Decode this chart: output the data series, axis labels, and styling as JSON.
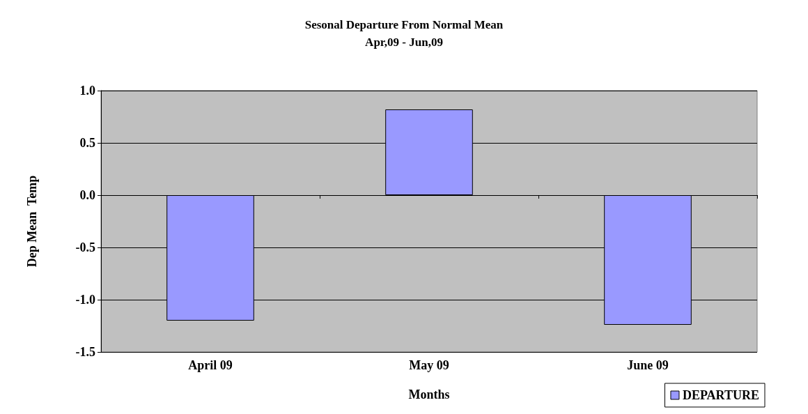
{
  "chart_data": {
    "type": "bar",
    "title": "Sesonal Departure From Normal Mean",
    "subtitle": "Apr,09 - Jun,09",
    "xlabel": "Months",
    "ylabel": "Dep Mean  Temp",
    "categories": [
      "April 09",
      "May 09",
      "June 09"
    ],
    "series": [
      {
        "name": "DEPARTURE",
        "color": "#9999ff",
        "values": [
          -1.2,
          0.82,
          -1.24
        ]
      }
    ],
    "ylim": [
      -1.5,
      1.0
    ],
    "yticks": [
      {
        "value": -1.5,
        "label": "-1.5"
      },
      {
        "value": -1.0,
        "label": "-1.0"
      },
      {
        "value": -0.5,
        "label": "-0.5"
      },
      {
        "value": 0,
        "label": "0.0"
      },
      {
        "value": 0.5,
        "label": "0.5"
      },
      {
        "value": 1.0,
        "label": "1.0"
      }
    ],
    "grid": "y",
    "legend": "bottom right"
  }
}
